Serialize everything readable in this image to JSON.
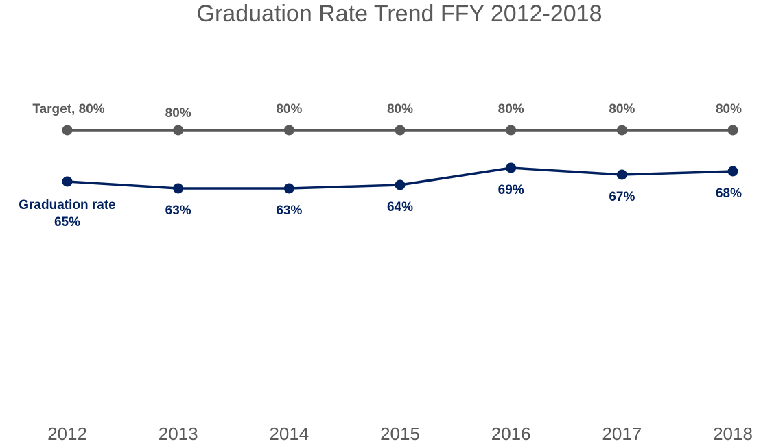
{
  "chart_data": {
    "type": "line",
    "title": "Graduation Rate Trend FFY 2012-2018",
    "categories": [
      "2012",
      "2013",
      "2014",
      "2015",
      "2016",
      "2017",
      "2018"
    ],
    "series": [
      {
        "name": "Target",
        "color": "#595959",
        "values": [
          80,
          80,
          80,
          80,
          80,
          80,
          80
        ],
        "value_labels": [
          "Target, 80%",
          "80%",
          "80%",
          "80%",
          "80%",
          "80%",
          "80%"
        ]
      },
      {
        "name": "Graduation rate",
        "color": "#002060",
        "values": [
          65,
          63,
          63,
          64,
          69,
          67,
          68
        ],
        "value_labels": [
          "65%",
          "63%",
          "63%",
          "64%",
          "69%",
          "67%",
          "68%"
        ]
      }
    ],
    "ylim": [
      0,
      100
    ]
  }
}
